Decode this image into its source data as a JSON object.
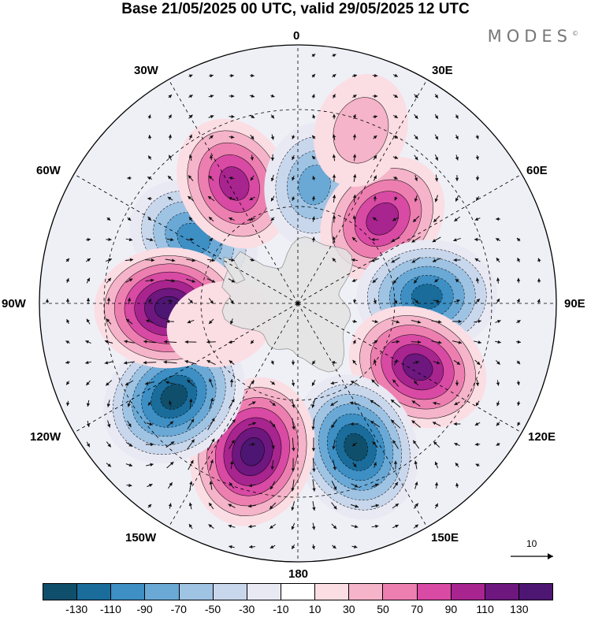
{
  "title": "Base 21/05/2025 00 UTC, valid 29/05/2025 12 UTC",
  "brand": "MODES",
  "brand_mark": "©",
  "longitude_labels": {
    "top": "0",
    "e30": "30E",
    "e60": "60E",
    "e90": "90E",
    "e120": "120E",
    "e150": "150E",
    "bottom": "180",
    "w150": "150W",
    "w120": "120W",
    "w90": "90W",
    "w60": "60W",
    "w30": "30W"
  },
  "reference_vector": "10",
  "colorbar": {
    "colors": [
      "#0f4f6c",
      "#1a6c9b",
      "#3d8fc4",
      "#6aa9d6",
      "#9fc3e3",
      "#c9d7ec",
      "#e9e9f4",
      "#ffffff",
      "#fbdde4",
      "#f5b4c9",
      "#ed7fb0",
      "#d84aa3",
      "#a8248f",
      "#6d177f",
      "#4e1673"
    ],
    "tick_labels": [
      "-130",
      "-110",
      "-90",
      "-70",
      "-50",
      "-30",
      "-10",
      "10",
      "30",
      "50",
      "70",
      "90",
      "110",
      "130"
    ]
  },
  "anomaly_centers": [
    {
      "lon": -58,
      "lat": -52,
      "value": -95
    },
    {
      "lon": -28,
      "lat": -48,
      "value": 95
    },
    {
      "lon": 8,
      "lat": -53,
      "value": -70
    },
    {
      "lon": 45,
      "lat": -53,
      "value": 100
    },
    {
      "lon": 87,
      "lat": -50,
      "value": -110
    },
    {
      "lon": 118,
      "lat": -48,
      "value": 115
    },
    {
      "lon": 158,
      "lat": -42,
      "value": -130
    },
    {
      "lon": -163,
      "lat": -42,
      "value": 135
    },
    {
      "lon": -127,
      "lat": -42,
      "value": -135
    },
    {
      "lon": -92,
      "lat": -50,
      "value": 130
    },
    {
      "lon": 20,
      "lat": -33,
      "value": 45
    },
    {
      "lon": -105,
      "lat": -65,
      "value": 25
    }
  ]
}
